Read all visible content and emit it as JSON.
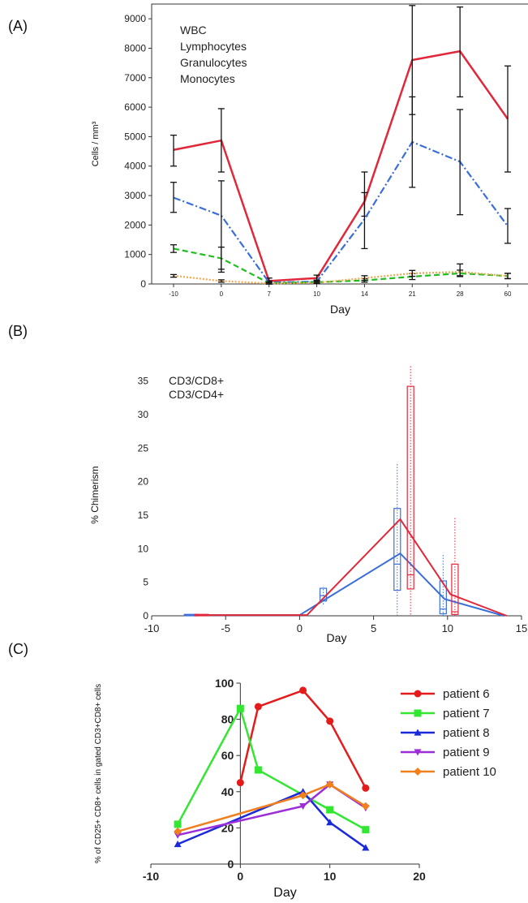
{
  "panels": {
    "a": "(A)",
    "b": "(B)",
    "c": "(C)"
  },
  "chart_data": [
    {
      "type": "line",
      "xlabel": "Day",
      "ylabel": "Cells / mm³",
      "categories": [
        "-10",
        "0",
        "7",
        "10",
        "14",
        "21",
        "28",
        "60"
      ],
      "ylim": [
        0,
        9500
      ],
      "yticks": [
        0,
        1000,
        2000,
        3000,
        4000,
        5000,
        6000,
        7000,
        8000,
        9000
      ],
      "legend_position": "top-left",
      "series": [
        {
          "name": "WBC",
          "color": "#e0283a",
          "style": "solid",
          "values": [
            4550,
            4870,
            100,
            200,
            2800,
            7600,
            7900,
            5600
          ],
          "err_low": [
            4000,
            3800,
            0,
            100,
            2300,
            5750,
            6350,
            3800
          ],
          "err_high": [
            5050,
            5950,
            200,
            300,
            3100,
            9450,
            9400,
            7400
          ]
        },
        {
          "name": "Lymphocytes",
          "color": "#3a6fd8",
          "style": "dashdot",
          "values": [
            2930,
            2320,
            50,
            80,
            2200,
            4820,
            4150,
            1960
          ],
          "err_low": [
            2430,
            400,
            0,
            30,
            1200,
            3280,
            2350,
            1380
          ],
          "err_high": [
            3450,
            3500,
            100,
            130,
            3800,
            6350,
            5920,
            2560
          ]
        },
        {
          "name": "Granulocytes",
          "color": "#1fbf1f",
          "style": "dashed",
          "values": [
            1200,
            870,
            30,
            60,
            120,
            250,
            360,
            270
          ],
          "err_low": [
            1070,
            500,
            0,
            20,
            60,
            150,
            250,
            180
          ],
          "err_high": [
            1330,
            1250,
            60,
            100,
            180,
            350,
            470,
            360
          ]
        },
        {
          "name": "Monocytes",
          "color": "#f0a850",
          "style": "dotted",
          "values": [
            280,
            100,
            20,
            40,
            200,
            360,
            410,
            270
          ],
          "err_low": [
            230,
            60,
            0,
            20,
            120,
            260,
            280,
            180
          ],
          "err_high": [
            320,
            140,
            40,
            60,
            280,
            460,
            680,
            360
          ]
        }
      ]
    },
    {
      "type": "box",
      "xlabel": "Day",
      "ylabel": "% Chimerism",
      "xlim": [
        -10,
        15
      ],
      "ylim": [
        0,
        38
      ],
      "xticks": [
        -10,
        -5,
        0,
        5,
        10,
        15
      ],
      "yticks": [
        0,
        5,
        10,
        15,
        20,
        25,
        30,
        35
      ],
      "legend_position": "top-left",
      "series": [
        {
          "name": "CD3/CD8+",
          "color": "#3a6fd8",
          "line": [
            [
              -7.5,
              0.1
            ],
            [
              0,
              0.1
            ],
            [
              6.8,
              9.3
            ],
            [
              9.8,
              2.5
            ],
            [
              13.8,
              0
            ]
          ],
          "boxes": [
            {
              "x": 1.6,
              "q1": 2.2,
              "med": 3.0,
              "q3": 4.1,
              "lo": 1.7,
              "hi": 4.3
            },
            {
              "x": 6.6,
              "q1": 3.8,
              "med": 7.7,
              "q3": 16.0,
              "lo": 0,
              "hi": 22.8
            },
            {
              "x": 9.7,
              "q1": 0.3,
              "med": 1.0,
              "q3": 5.2,
              "lo": 0,
              "hi": 9.2
            }
          ]
        },
        {
          "name": "CD3/CD4+",
          "color": "#e0283a",
          "line": [
            [
              -6.8,
              0.1
            ],
            [
              0.5,
              0.1
            ],
            [
              6.8,
              14.4
            ],
            [
              10.2,
              3.2
            ],
            [
              14.0,
              0
            ]
          ],
          "boxes": [
            {
              "x": 7.5,
              "q1": 4.0,
              "med": 6.1,
              "q3": 34.2,
              "lo": 0.2,
              "hi": 37.3
            },
            {
              "x": 10.5,
              "q1": 0.2,
              "med": 0.6,
              "q3": 7.7,
              "lo": 0,
              "hi": 14.8
            }
          ]
        }
      ]
    },
    {
      "type": "line",
      "xlabel": "Day",
      "ylabel": "% of CD25+ CD8+ cells in gated CD3+CD8+ cells",
      "xlim": [
        -10,
        20
      ],
      "ylim": [
        0,
        100
      ],
      "xticks": [
        -10,
        0,
        10,
        20
      ],
      "yticks": [
        0,
        20,
        40,
        60,
        80,
        100
      ],
      "legend_position": "right",
      "series": [
        {
          "name": "patient 6",
          "color": "#e51b1b",
          "marker": "circle",
          "x": [
            0,
            2,
            7,
            10,
            14
          ],
          "y": [
            45,
            87,
            96,
            79,
            42
          ]
        },
        {
          "name": "patient 7",
          "color": "#32e632",
          "marker": "square",
          "x": [
            -7,
            0,
            2,
            10,
            14
          ],
          "y": [
            22,
            86,
            52,
            30,
            19
          ]
        },
        {
          "name": "patient 8",
          "color": "#1a29d9",
          "marker": "triangle-up",
          "x": [
            -7,
            7,
            10,
            14
          ],
          "y": [
            11,
            40,
            23,
            9
          ]
        },
        {
          "name": "patient 9",
          "color": "#9b2ed8",
          "marker": "triangle-down",
          "x": [
            -7,
            7,
            10,
            14
          ],
          "y": [
            16,
            32,
            44,
            31
          ]
        },
        {
          "name": "patient 10",
          "color": "#f07f1c",
          "marker": "diamond",
          "x": [
            -7,
            7,
            10,
            14
          ],
          "y": [
            18,
            38,
            44,
            32
          ]
        }
      ]
    }
  ]
}
